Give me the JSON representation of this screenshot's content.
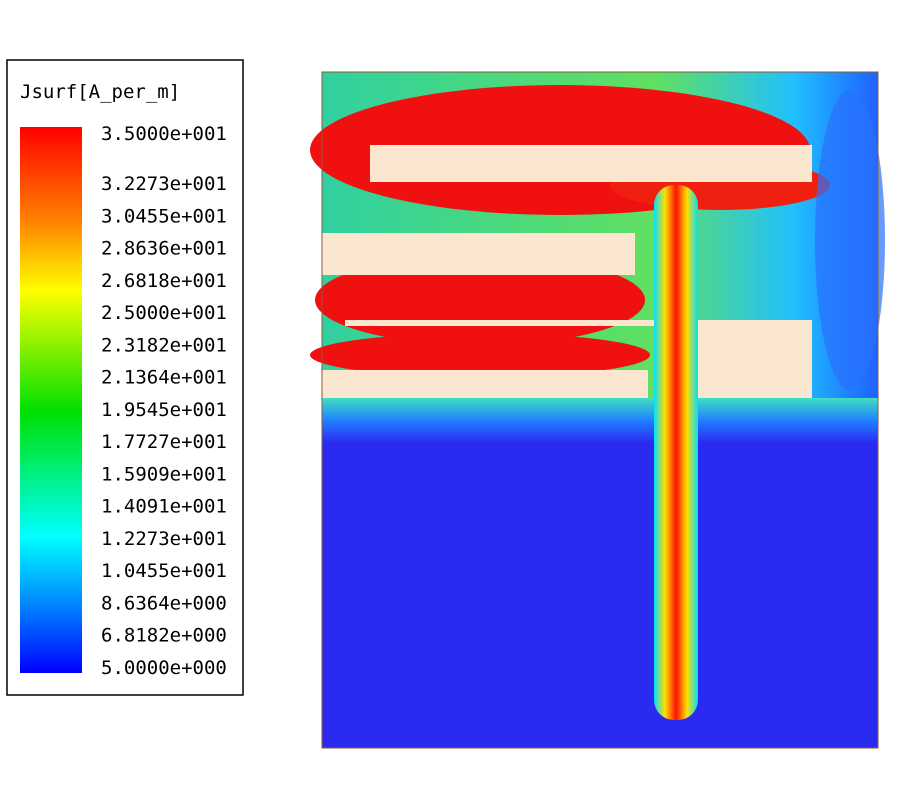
{
  "legend": {
    "title": "Jsurf[A_per_m]",
    "labels": [
      "3.5000e+001",
      "3.2273e+001",
      "3.0455e+001",
      "2.8636e+001",
      "2.6818e+001",
      "2.5000e+001",
      "2.3182e+001",
      "2.1364e+001",
      "1.9545e+001",
      "1.7727e+001",
      "1.5909e+001",
      "1.4091e+001",
      "1.2273e+001",
      "1.0455e+001",
      "8.6364e+000",
      "6.8182e+000",
      "5.0000e+000"
    ]
  }
}
